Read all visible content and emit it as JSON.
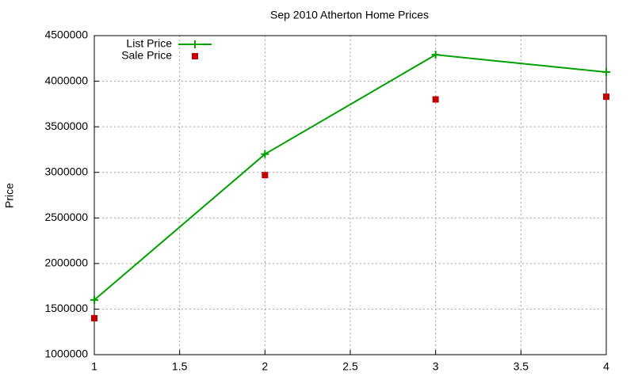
{
  "chart_data": {
    "type": "line",
    "title": "Sep 2010 Atherton Home Prices",
    "ylabel": "Price",
    "x": [
      1,
      2,
      3,
      4
    ],
    "series": [
      {
        "name": "List Price",
        "color": "#00a000",
        "marker": "plus",
        "line": true,
        "values": [
          1600000,
          3200000,
          4290000,
          4100000
        ]
      },
      {
        "name": "Sale Price",
        "color": "#c00000",
        "marker": "square",
        "line": false,
        "values": [
          1400000,
          2970000,
          3800000,
          3830000
        ]
      }
    ],
    "xlim": [
      1,
      4
    ],
    "xticks": [
      1,
      1.5,
      2,
      2.5,
      3,
      3.5,
      4
    ],
    "ylim": [
      1000000,
      4500000
    ],
    "yticks": [
      1000000,
      1500000,
      2000000,
      2500000,
      3000000,
      3500000,
      4000000,
      4500000
    ],
    "grid": true,
    "legend": "upper left"
  }
}
